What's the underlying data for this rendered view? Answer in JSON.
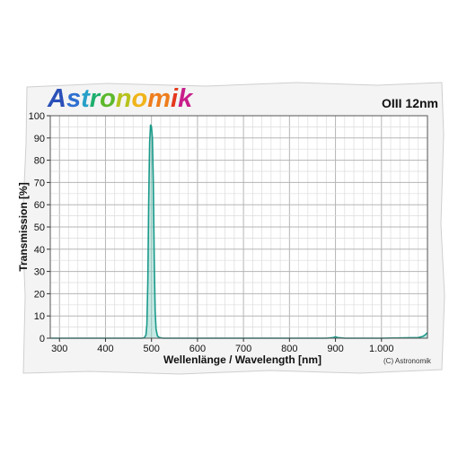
{
  "brand": {
    "logo_text": "Astronomik",
    "logo_letter_colors": [
      "#2a4fb8",
      "#2f6fd0",
      "#27a0c8",
      "#1fae6e",
      "#5cb82c",
      "#b7c21e",
      "#f0b419",
      "#ee7d1c",
      "#e4381c",
      "#c81e8a"
    ]
  },
  "chart_data": {
    "type": "line",
    "title": "OIII 12nm",
    "xlabel": "Wellenlänge / Wavelength [nm]",
    "ylabel": "Transmission [%]",
    "copyright": "(C) Astronomik",
    "xlim": [
      280,
      1100
    ],
    "ylim": [
      0,
      100
    ],
    "x_ticks": [
      {
        "value": 300,
        "label": "300"
      },
      {
        "value": 400,
        "label": "400"
      },
      {
        "value": 500,
        "label": "500"
      },
      {
        "value": 600,
        "label": "600"
      },
      {
        "value": 700,
        "label": "700"
      },
      {
        "value": 800,
        "label": "800"
      },
      {
        "value": 900,
        "label": "900"
      },
      {
        "value": 1000,
        "label": "1.000"
      }
    ],
    "y_ticks": [
      0,
      10,
      20,
      30,
      40,
      50,
      60,
      70,
      80,
      90,
      100
    ],
    "grid": true,
    "series_color": "#1a9a8a",
    "fill_color": "#7fcfc3",
    "series": [
      {
        "x": [
          280,
          300,
          400,
          470,
          480,
          485,
          488,
          490,
          492,
          494,
          496,
          498,
          500,
          502,
          504,
          506,
          508,
          510,
          513,
          517,
          525,
          600,
          700,
          800,
          880,
          895,
          900,
          905,
          920,
          1000,
          1080,
          1090,
          1095,
          1100
        ],
        "y": [
          0,
          0,
          0,
          0,
          0,
          0.3,
          1.5,
          6,
          25,
          62,
          88,
          96,
          95,
          90,
          70,
          35,
          12,
          4,
          1,
          0.3,
          0,
          0,
          0,
          0,
          0,
          0.3,
          0.6,
          0.3,
          0,
          0,
          0.3,
          0.8,
          1.5,
          2.5
        ]
      }
    ]
  }
}
